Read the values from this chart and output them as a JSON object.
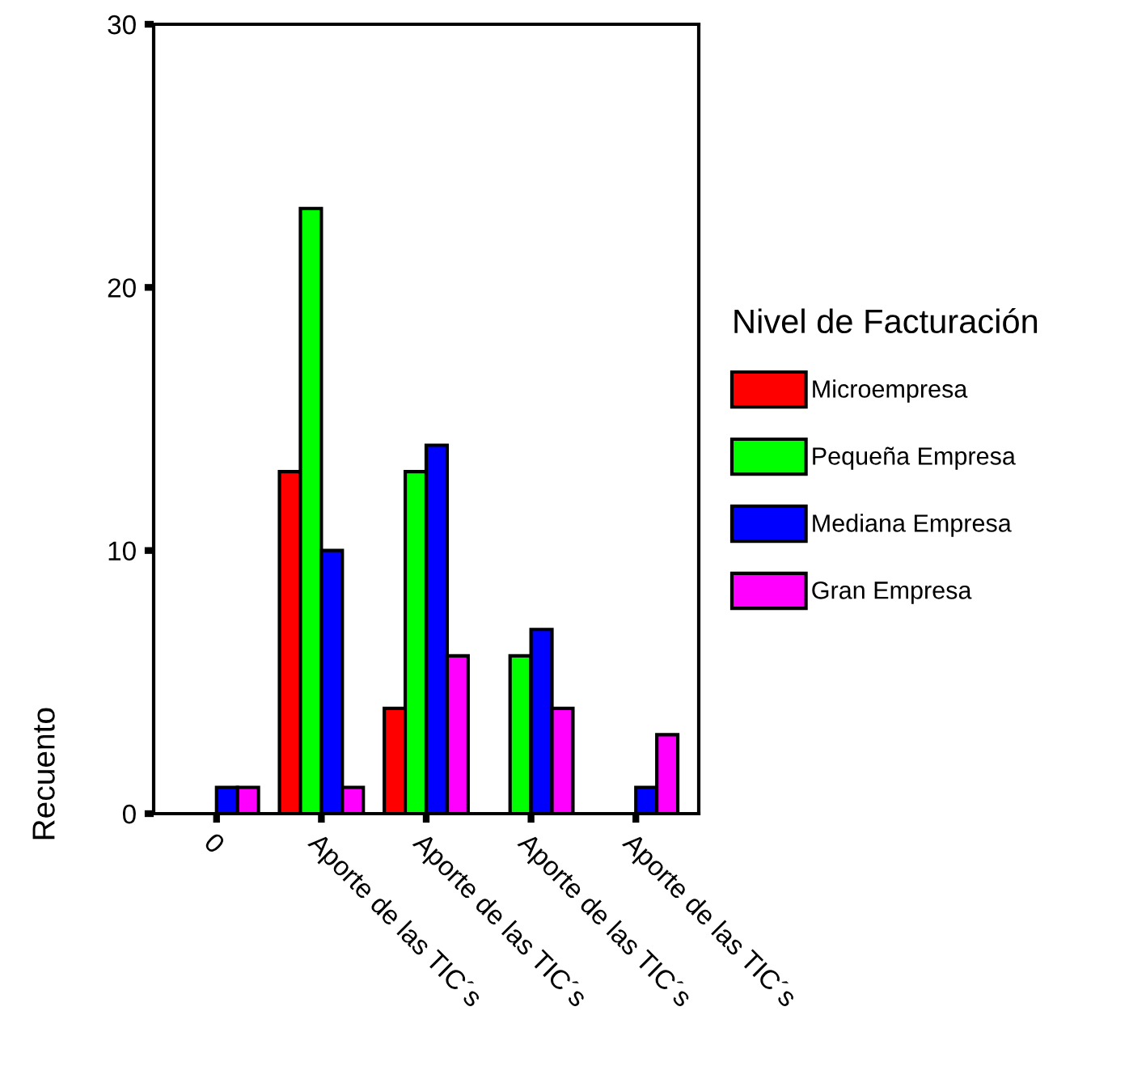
{
  "chart_data": {
    "type": "bar",
    "ylabel": "Recuento",
    "legend_title": "Nivel de Facturación",
    "categories": [
      "0",
      "Aporte de las TIC´s",
      "Aporte de las TIC´s",
      "Aporte de las TIC´s",
      "Aporte de las TIC´s"
    ],
    "series": [
      {
        "name": "Microempresa",
        "color": "#ff0000",
        "values": [
          null,
          13,
          4,
          null,
          null
        ]
      },
      {
        "name": "Pequeña Empresa",
        "color": "#00ff00",
        "values": [
          null,
          23,
          13,
          6,
          null
        ]
      },
      {
        "name": "Mediana Empresa",
        "color": "#0000ff",
        "values": [
          1,
          10,
          14,
          7,
          1
        ]
      },
      {
        "name": "Gran Empresa",
        "color": "#ff00ff",
        "values": [
          1,
          1,
          6,
          4,
          3
        ]
      }
    ],
    "ylim": [
      0,
      30
    ],
    "yticks": [
      0,
      10,
      20,
      30
    ],
    "grid": false,
    "legend": "right"
  }
}
